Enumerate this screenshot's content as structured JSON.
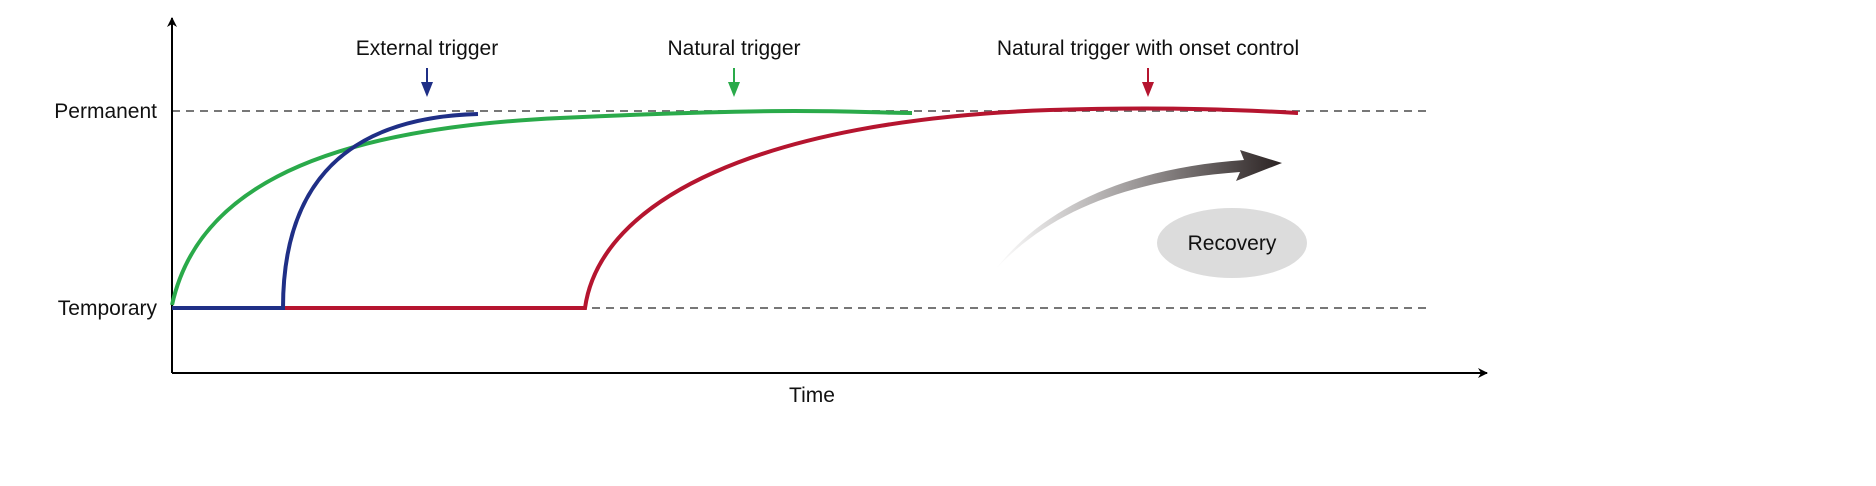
{
  "axes": {
    "x_label": "Time",
    "y_levels": [
      "Permanent",
      "Temporary"
    ]
  },
  "curves": [
    {
      "label": "External trigger",
      "color": "#1f2f86"
    },
    {
      "label": "Natural trigger",
      "color": "#2aaa4a"
    },
    {
      "label": "Natural trigger with onset control",
      "color": "#b5152f"
    }
  ],
  "recovery": {
    "label": "Recovery",
    "arrow_color": "#2a2222",
    "badge_color": "#dcdcdc"
  },
  "guide_color": "#777777"
}
